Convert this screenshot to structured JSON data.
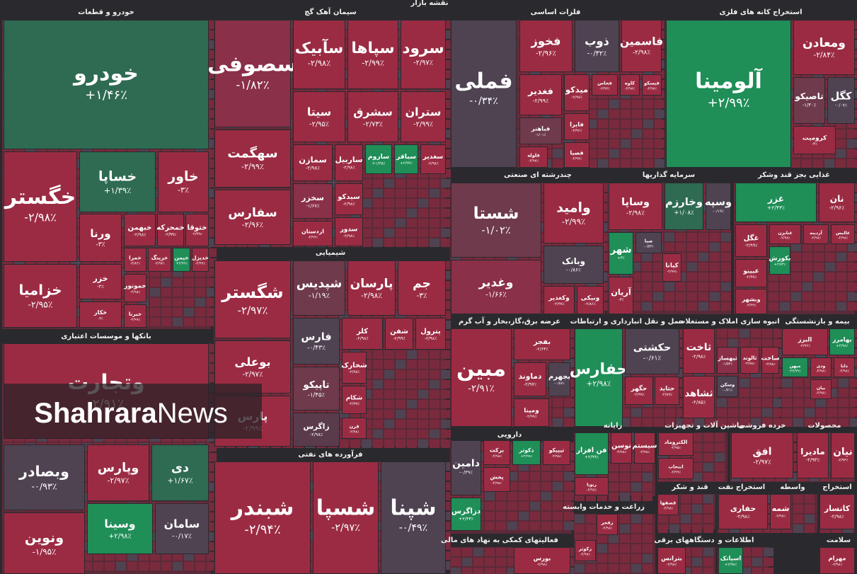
{
  "title": "نقشه بازار",
  "watermark": {
    "bold": "Shahrara",
    "light": "News"
  },
  "sectors": [
    {
      "name": "خودرو و قطعات",
      "tiles": [
        {
          "symbol": "خودرو",
          "change": "+۱/۴۶٪",
          "color": "#2e6b52"
        },
        {
          "symbol": "خگستر",
          "change": "-۲/۹۸٪",
          "color": "#9b2b43"
        },
        {
          "symbol": "خساپا",
          "change": "+۱/۳۹٪",
          "color": "#2e6b52"
        },
        {
          "symbol": "خاور",
          "change": "-۳٪",
          "color": "#9b2b43"
        },
        {
          "symbol": "ورنا",
          "change": "-۳٪",
          "color": "#9b2b43"
        },
        {
          "symbol": "خبهمن",
          "change": "-۲/۹۸٪",
          "color": "#9b2b43"
        },
        {
          "symbol": "خمحرکه",
          "change": "-۲/۹۹٪",
          "color": "#9b2b43"
        },
        {
          "symbol": "ختوقا",
          "change": "-۲/۹۹٪",
          "color": "#9b2b43"
        },
        {
          "symbol": "خزامیا",
          "change": "-۲/۹۵٪",
          "color": "#9b2b43"
        },
        {
          "symbol": "خزر",
          "change": "-۳٪",
          "color": "#9b2b43"
        },
        {
          "symbol": "خکار",
          "change": "-۳٪",
          "color": "#9b2b43"
        },
        {
          "symbol": "خمرا",
          "change": "-۲/۸۶٪",
          "color": "#9b2b43"
        },
        {
          "symbol": "خرینگ",
          "change": "-۲/۹۷٪",
          "color": "#9b2b43"
        },
        {
          "symbol": "خیمن",
          "change": "+۲/۹۹٪",
          "color": "#1f8e57"
        },
        {
          "symbol": "خدیزل",
          "change": "-۲/۹۹٪",
          "color": "#9b2b43"
        },
        {
          "symbol": "خموتور",
          "change": "-۲/۹۸٪",
          "color": "#9b2b43"
        },
        {
          "symbol": "خبرنا",
          "change": "-۲/۹۹٪",
          "color": "#9b2b43"
        }
      ]
    },
    {
      "name": "بانکها و موسسات اعتباری",
      "tiles": [
        {
          "symbol": "وتجارت",
          "change": "-۲/۹۱٪",
          "color": "#9b2b43"
        },
        {
          "symbol": "وبصادر",
          "change": "-۰/۹۳٪",
          "color": "#4f4352"
        },
        {
          "symbol": "وپارس",
          "change": "-۲/۹۷٪",
          "color": "#9b2b43"
        },
        {
          "symbol": "دی",
          "change": "+۱/۶۷٪",
          "color": "#2e6b52"
        },
        {
          "symbol": "ونوین",
          "change": "-۱/۹۵٪",
          "color": "#9b2b43"
        },
        {
          "symbol": "وسینا",
          "change": "+۲/۹۸٪",
          "color": "#1f8e57"
        },
        {
          "symbol": "سامان",
          "change": "-۰/۱۷٪",
          "color": "#4f4352"
        }
      ]
    },
    {
      "name": "سیمان آهک گچ",
      "tiles": [
        {
          "symbol": "سصوفی",
          "change": "-۱/۸۲٪",
          "color": "#8a3048"
        },
        {
          "symbol": "سآبیک",
          "change": "-۲/۹۸٪",
          "color": "#9b2b43"
        },
        {
          "symbol": "سپاها",
          "change": "-۲/۹۹٪",
          "color": "#9b2b43"
        },
        {
          "symbol": "سرود",
          "change": "-۲/۹۷٪",
          "color": "#9b2b43"
        },
        {
          "symbol": "سیتا",
          "change": "-۲/۹۵٪",
          "color": "#9b2b43"
        },
        {
          "symbol": "سشرق",
          "change": "-۲/۷۳٪",
          "color": "#9b2b43"
        },
        {
          "symbol": "ستران",
          "change": "-۲/۹۹٪",
          "color": "#9b2b43"
        },
        {
          "symbol": "سهگمت",
          "change": "-۲/۹۹٪",
          "color": "#9b2b43"
        },
        {
          "symbol": "سمازن",
          "change": "-۲/۹۸٪",
          "color": "#9b2b43"
        },
        {
          "symbol": "ساربیل",
          "change": "-۲/۹۸٪",
          "color": "#9b2b43"
        },
        {
          "symbol": "ساروم",
          "change": "+۱/۳۵٪",
          "color": "#1f8e57"
        },
        {
          "symbol": "سباقر",
          "change": "+۲/۹۹٪",
          "color": "#1f8e57"
        },
        {
          "symbol": "سغدیر",
          "change": "-۲/۹۸٪",
          "color": "#9b2b43"
        },
        {
          "symbol": "سفارس",
          "change": "-۲/۹۶٪",
          "color": "#9b2b43"
        },
        {
          "symbol": "سخزر",
          "change": "-۱/۶۷٪",
          "color": "#8a3048"
        },
        {
          "symbol": "سیدکو",
          "change": "-۲/۹۸٪",
          "color": "#9b2b43"
        },
        {
          "symbol": "اردستان",
          "change": "-۲/۹۹٪",
          "color": "#9b2b43"
        },
        {
          "symbol": "سدور",
          "change": "-۲/۹۸٪",
          "color": "#9b2b43"
        }
      ]
    },
    {
      "name": "شیمیایی",
      "tiles": [
        {
          "symbol": "شگستر",
          "change": "-۲/۹۷٪",
          "color": "#9b2b43"
        },
        {
          "symbol": "شپدیس",
          "change": "-۱/۱۹٪",
          "color": "#6e3a4c"
        },
        {
          "symbol": "پارسان",
          "change": "-۲/۹۸٪",
          "color": "#9b2b43"
        },
        {
          "symbol": "جم",
          "change": "-۳٪",
          "color": "#9b2b43"
        },
        {
          "symbol": "بوعلی",
          "change": "-۲/۹۷٪",
          "color": "#9b2b43"
        },
        {
          "symbol": "فارس",
          "change": "-۰/۴۳٪",
          "color": "#4f4352"
        },
        {
          "symbol": "کلر",
          "change": "-۲/۹۸٪",
          "color": "#9b2b43"
        },
        {
          "symbol": "شفن",
          "change": "-۲/۹۹٪",
          "color": "#9b2b43"
        },
        {
          "symbol": "پترول",
          "change": "-۲/۹۸٪",
          "color": "#9b2b43"
        },
        {
          "symbol": "پارس",
          "change": "-۲/۹۹٪",
          "color": "#9b2b43"
        },
        {
          "symbol": "تاپیکو",
          "change": "-۱/۴۵٪",
          "color": "#6e3a4c"
        },
        {
          "symbol": "شخارک",
          "change": "-۲/۹۸٪",
          "color": "#9b2b43"
        },
        {
          "symbol": "زاگرس",
          "change": "-۲/۹۸٪",
          "color": "#5a3b4c"
        },
        {
          "symbol": "شکام",
          "change": "-۲/۹۹٪",
          "color": "#9b2b43"
        },
        {
          "symbol": "قرن",
          "change": "-۲/۹۸٪",
          "color": "#9b2b43"
        }
      ]
    },
    {
      "name": "فرآورده های نفتی",
      "tiles": [
        {
          "symbol": "شبندر",
          "change": "-۲/۹۴٪",
          "color": "#9b2b43"
        },
        {
          "symbol": "شسپا",
          "change": "-۲/۹۷٪",
          "color": "#9b2b43"
        },
        {
          "symbol": "شپنا",
          "change": "-۰/۴۹٪",
          "color": "#4f4352"
        }
      ]
    },
    {
      "name": "فلزات اساسی",
      "tiles": [
        {
          "symbol": "فملی",
          "change": "-۰/۳۴٪",
          "color": "#4f4352"
        },
        {
          "symbol": "فخوز",
          "change": "-۲/۹۶٪",
          "color": "#9b2b43"
        },
        {
          "symbol": "ذوب",
          "change": "-۰/۳۲٪",
          "color": "#4f4352"
        },
        {
          "symbol": "فاسمین",
          "change": "-۲/۹۸٪",
          "color": "#9b2b43"
        },
        {
          "symbol": "فغدیر",
          "change": "-۲/۹۹٪",
          "color": "#9b2b43"
        },
        {
          "symbol": "میدکو",
          "change": "-۲/۹۷٪",
          "color": "#9b2b43"
        },
        {
          "symbol": "فخاس",
          "change": "-۲/۹۷٪",
          "color": "#9b2b43"
        },
        {
          "symbol": "کاوه",
          "change": "-۲/۹۸٪",
          "color": "#9b2b43"
        },
        {
          "symbol": "فیسکو",
          "change": "-۲/۹۸٪",
          "color": "#9b2b43"
        },
        {
          "symbol": "فباهنر",
          "change": "-۱/۰۱٪",
          "color": "#6e3a4c"
        },
        {
          "symbol": "فایرا",
          "change": "-۲/۹۶٪",
          "color": "#9b2b43"
        },
        {
          "symbol": "فلوله",
          "change": "-۲/۹۸٪",
          "color": "#9b2b43"
        },
        {
          "symbol": "فصبا",
          "change": "-۲/۹۷٪",
          "color": "#9b2b43"
        }
      ]
    },
    {
      "name": "استخراج کانه های فلزی",
      "tiles": [
        {
          "symbol": "آلومینا",
          "change": "+۲/۹۹٪",
          "color": "#1f8e57"
        },
        {
          "symbol": "ومعادن",
          "change": "-۲/۸۴٪",
          "color": "#9b2b43"
        },
        {
          "symbol": "تاصیکو",
          "change": "-۱/۳۰٪",
          "color": "#6e3a4c"
        },
        {
          "symbol": "کگل",
          "change": "-۰/۰۷٪",
          "color": "#4f4352"
        },
        {
          "symbol": "کرومیت",
          "change": "-۳٪",
          "color": "#9b2b43"
        }
      ]
    },
    {
      "name": "چندرشته ای صنعتی",
      "tiles": [
        {
          "symbol": "شستا",
          "change": "-۱/۰۲٪",
          "color": "#6e3a4c"
        },
        {
          "symbol": "وامید",
          "change": "-۲/۹۹٪",
          "color": "#9b2b43"
        },
        {
          "symbol": "وغدیر",
          "change": "-۱/۶۶٪",
          "color": "#8a3048"
        },
        {
          "symbol": "وبانک",
          "change": "-۰/۸۶٪",
          "color": "#4f4352"
        },
        {
          "symbol": "وکغدیر",
          "change": "-۲/۹۹٪",
          "color": "#9b2b43"
        },
        {
          "symbol": "ونیکی",
          "change": "-۲/۸۶٪",
          "color": "#9b2b43"
        }
      ]
    },
    {
      "name": "سرمایه گذاریها",
      "tiles": [
        {
          "symbol": "وساپا",
          "change": "-۲/۹۸٪",
          "color": "#9b2b43"
        },
        {
          "symbol": "وخارزم",
          "change": "+۱/۰۸٪",
          "color": "#2e6b52"
        },
        {
          "symbol": "وسپه",
          "change": "-۰/۱۹٪",
          "color": "#4f4352"
        },
        {
          "symbol": "شهر",
          "change": "+۳٪",
          "color": "#1f8e57"
        },
        {
          "symbol": "صبا",
          "change": "-۰/۵۳٪",
          "color": "#4f4352"
        },
        {
          "symbol": "کیانا",
          "change": "-۲/۹۹٪",
          "color": "#9b2b43"
        },
        {
          "symbol": "آریان",
          "change": "-۳٪",
          "color": "#9b2b43"
        }
      ]
    },
    {
      "name": "غذایی بجز قند وشکر",
      "tiles": [
        {
          "symbol": "غزر",
          "change": "+۲/۴۳٪",
          "color": "#1f8e57"
        },
        {
          "symbol": "نان",
          "change": "-۲/۹۶٪",
          "color": "#9b2b43"
        },
        {
          "symbol": "غگل",
          "change": "-۲/۹۹٪",
          "color": "#9b2b43"
        },
        {
          "symbol": "غنابزن",
          "change": "-۲/۹۸٪",
          "color": "#9b2b43"
        },
        {
          "symbol": "آردینه",
          "change": "-۲/۹۸٪",
          "color": "#9b2b43"
        },
        {
          "symbol": "غالبس",
          "change": "-۲/۹۸٪",
          "color": "#9b2b43"
        },
        {
          "symbol": "غبینو",
          "change": "-۲/۹۹٪",
          "color": "#9b2b43"
        },
        {
          "symbol": "بکورش",
          "change": "+۲/۷۳٪",
          "color": "#1f8e57"
        },
        {
          "symbol": "وبشهر",
          "change": "-۲/۹۹٪",
          "color": "#9b2b43"
        }
      ]
    },
    {
      "name": "عرضه برق،گاز،بخار و آب گرم",
      "tiles": [
        {
          "symbol": "مبین",
          "change": "-۲/۹۱٪",
          "color": "#9b2b43"
        },
        {
          "symbol": "بفجر",
          "change": "-۲/۶۴٪",
          "color": "#9b2b43"
        },
        {
          "symbol": "دماوند",
          "change": "-۲/۹۷٪",
          "color": "#9b2b43"
        },
        {
          "symbol": "بجهرم",
          "change": "-۰/۸۷٪",
          "color": "#4f4352"
        },
        {
          "symbol": "ومپنا",
          "change": "-۲/۹۹٪",
          "color": "#9b2b43"
        }
      ]
    },
    {
      "name": "حمل و نقل انبارداری و ارتباطات",
      "tiles": [
        {
          "symbol": "حفارس",
          "change": "+۲/۹۸٪",
          "color": "#1f8e57"
        },
        {
          "symbol": "حکشتی",
          "change": "-۰/۶۱٪",
          "color": "#4f4352"
        },
        {
          "symbol": "حگهر",
          "change": "-۲/۹۹٪",
          "color": "#9b2b43"
        },
        {
          "symbol": "حتاید",
          "change": "-۲/۸۹٪",
          "color": "#9b2b43"
        }
      ]
    },
    {
      "name": "انبوه سازی املاک و مستغلات",
      "tiles": [
        {
          "symbol": "ثاخت",
          "change": "-۲/۹۸٪",
          "color": "#9b2b43"
        },
        {
          "symbol": "ثبهساز",
          "change": "-۱/۵۴٪",
          "color": "#8a3048"
        },
        {
          "symbol": "ثالوند",
          "change": "-۲/۹۸٪",
          "color": "#9b2b43"
        },
        {
          "symbol": "ساخت",
          "change": "-۲/۹۸٪",
          "color": "#9b2b43"
        },
        {
          "symbol": "ثشاهد",
          "change": "-۲/۸۵٪",
          "color": "#9b2b43"
        },
        {
          "symbol": "وسکن",
          "change": "-۰/۷۱٪",
          "color": "#4f4352"
        }
      ]
    },
    {
      "name": "بیمه و بازنشستگی",
      "tiles": [
        {
          "symbol": "البرز",
          "change": "-۲/۹۶٪",
          "color": "#9b2b43"
        },
        {
          "symbol": "بهامرز",
          "change": "+۲/۹۸٪",
          "color": "#1f8e57"
        },
        {
          "symbol": "میهن",
          "change": "+۲/۹۹٪",
          "color": "#1f8e57"
        },
        {
          "symbol": "ودی",
          "change": "-۲/۹۸٪",
          "color": "#9b2b43"
        },
        {
          "symbol": "دانا",
          "change": "-۲/۹۸٪",
          "color": "#9b2b43"
        },
        {
          "symbol": "بیان",
          "change": "-۲/۹۸٪",
          "color": "#9b2b43"
        }
      ]
    },
    {
      "name": "دارویی",
      "tiles": [
        {
          "symbol": "دامین",
          "change": "-۰/۳۹٪",
          "color": "#4f4352"
        },
        {
          "symbol": "برکت",
          "change": "-۲/۹۸٪",
          "color": "#9b2b43"
        },
        {
          "symbol": "دکوثر",
          "change": "+۲/۹۹٪",
          "color": "#1f8e57"
        },
        {
          "symbol": "تیپیکو",
          "change": "-۲/۹۸٪",
          "color": "#9b2b43"
        },
        {
          "symbol": "پخش",
          "change": "-۲/۹۸٪",
          "color": "#9b2b43"
        },
        {
          "symbol": "دزاگرس",
          "change": "+۲/۴۳٪",
          "color": "#1f8e57"
        }
      ]
    },
    {
      "name": "رایانه",
      "tiles": [
        {
          "symbol": "فن افزار",
          "change": "+۲/۹۹٪",
          "color": "#1f8e57"
        },
        {
          "symbol": "توسن",
          "change": "-۲/۹۸٪",
          "color": "#9b2b43"
        },
        {
          "symbol": "سیستم",
          "change": "-۲/۹۸٪",
          "color": "#9b2b43"
        },
        {
          "symbol": "ربویا",
          "change": "-۲/۹۸٪",
          "color": "#9b2b43"
        }
      ]
    },
    {
      "name": "ماشین آلات و تجهیزات",
      "tiles": [
        {
          "symbol": "الکتروماد",
          "change": "-۲/۹۵٪",
          "color": "#9b2b43"
        },
        {
          "symbol": "انتخاب",
          "change": "-۲/۹۹٪",
          "color": "#9b2b43"
        }
      ]
    },
    {
      "name": "خرده فروشی",
      "tiles": [
        {
          "symbol": "افق",
          "change": "-۲/۹۷٪",
          "color": "#9b2b43"
        }
      ]
    },
    {
      "name": "محصولات",
      "tiles": [
        {
          "symbol": "مادیرا",
          "change": "-۲/۹۳٪",
          "color": "#9b2b43"
        },
        {
          "symbol": "نیان",
          "change": "-۲/۹۳٪",
          "color": "#9b2b43"
        }
      ]
    },
    {
      "name": "استخراج نفت",
      "tiles": [
        {
          "symbol": "حفاری",
          "change": "-۲/۹۸٪",
          "color": "#9b2b43"
        }
      ]
    },
    {
      "name": "قند و شکر",
      "tiles": [
        {
          "symbol": "قصفها",
          "change": "-۲/۹۸٪",
          "color": "#9b2b43"
        }
      ]
    },
    {
      "name": "زراعت و خدمات وابسته",
      "tiles": [
        {
          "symbol": "زفجر",
          "change": "-۲/۹۸٪",
          "color": "#9b2b43"
        },
        {
          "symbol": "زکوثر",
          "change": "-۲/۹۸٪",
          "color": "#9b2b43"
        }
      ]
    },
    {
      "name": "فعالیتهای کمکی به نهاد های مالی",
      "tiles": [
        {
          "symbol": "بورس",
          "change": "-۲/۹۸٪",
          "color": "#9b2b43"
        }
      ]
    },
    {
      "name": "دستگاههای برقی",
      "tiles": [
        {
          "symbol": "بترانس",
          "change": "-۲/۹۸٪",
          "color": "#9b2b43"
        }
      ]
    },
    {
      "name": "استخراج",
      "tiles": [
        {
          "symbol": "کانسار",
          "change": "-۲/۹۸٪",
          "color": "#9b2b43"
        }
      ]
    },
    {
      "name": "واسطه",
      "tiles": [
        {
          "symbol": "شمه",
          "change": "-۲/۹۸٪",
          "color": "#9b2b43"
        }
      ]
    },
    {
      "name": "اطلاعات و",
      "tiles": [
        {
          "symbol": "اسیاتک",
          "change": "+۲/۹۸٪",
          "color": "#1f8e57"
        }
      ]
    },
    {
      "name": "سلامت",
      "tiles": [
        {
          "symbol": "مهرام",
          "change": "-۲/۹۸٪",
          "color": "#9b2b43"
        }
      ]
    }
  ]
}
